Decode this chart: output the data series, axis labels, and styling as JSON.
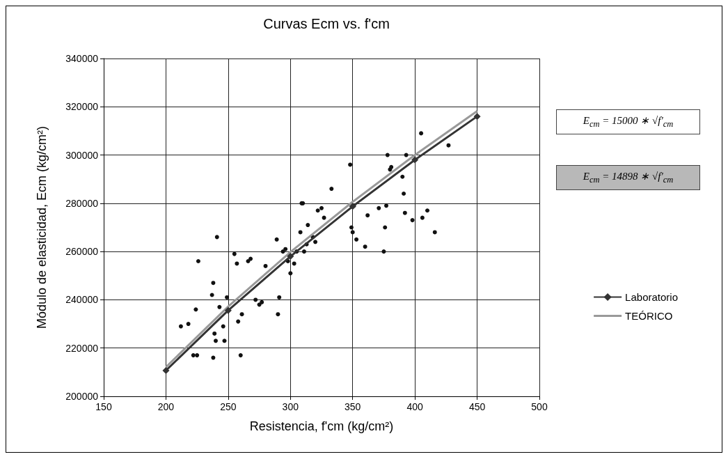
{
  "chart_data": {
    "type": "line",
    "title": "Curvas Ecm vs. f'cm",
    "xlabel": "Resistencia, f'cm (kg/cm²)",
    "ylabel": "Módulo de elasticidad, Ecm (kg/cm²)",
    "xlim": [
      150,
      500
    ],
    "xticks": [
      150,
      200,
      250,
      300,
      350,
      400,
      450,
      500
    ],
    "ylim": [
      200000,
      340000
    ],
    "yticks": [
      200000,
      220000,
      240000,
      260000,
      280000,
      300000,
      320000,
      340000
    ],
    "grid": true,
    "legend": "right",
    "annotations": [
      "E$_{cm}$ = 15000 ∗ √f'$_{cm}$",
      "E$_{cm}$ = 14898 ∗ √f'$_{cm}$"
    ],
    "series": [
      {
        "type": "scatter",
        "color": "#111111",
        "marker": "circle",
        "x": [
          212,
          218,
          222,
          225,
          226,
          224,
          238,
          237,
          238,
          239,
          240,
          241,
          243,
          246,
          247,
          249,
          255,
          257,
          258,
          260,
          261,
          266,
          268,
          272,
          275,
          277,
          280,
          289,
          290,
          291,
          294,
          296,
          298,
          300,
          303,
          305,
          308,
          309,
          310,
          311,
          313,
          314,
          318,
          320,
          322,
          325,
          327,
          333,
          348,
          349,
          350,
          351,
          353,
          360,
          362,
          371,
          375,
          376,
          377,
          378,
          380,
          381,
          390,
          391,
          392,
          393,
          398,
          405,
          406,
          410,
          416,
          427
        ],
        "values": [
          229000,
          230000,
          217000,
          217000,
          256000,
          236000,
          216000,
          242000,
          247000,
          226000,
          223000,
          266000,
          237000,
          229000,
          223000,
          241000,
          259000,
          255000,
          231000,
          217000,
          234000,
          256000,
          257000,
          240000,
          238000,
          239000,
          254000,
          265000,
          234000,
          241000,
          260000,
          261000,
          256000,
          251000,
          255000,
          260000,
          268000,
          280000,
          280000,
          260000,
          263000,
          271000,
          266000,
          264000,
          277000,
          278000,
          274000,
          286000,
          296000,
          270000,
          268000,
          279000,
          265000,
          262000,
          275000,
          278000,
          260000,
          270000,
          279000,
          300000,
          294000,
          295000,
          291000,
          284000,
          276000,
          300000,
          273000,
          309000,
          274000,
          277000,
          268000,
          304000
        ]
      },
      {
        "name": "Laboratorio",
        "color": "#333333",
        "marker": "diamond",
        "x": [
          200,
          250,
          300,
          350,
          400,
          450
        ],
        "values": [
          210700,
          235600,
          258000,
          278700,
          298000,
          316000
        ]
      },
      {
        "name": "TEÓRICO",
        "color": "#999999",
        "marker": "none",
        "x": [
          200,
          250,
          300,
          350,
          400,
          450
        ],
        "values": [
          212100,
          237200,
          259800,
          280600,
          300000,
          318200
        ]
      }
    ]
  }
}
